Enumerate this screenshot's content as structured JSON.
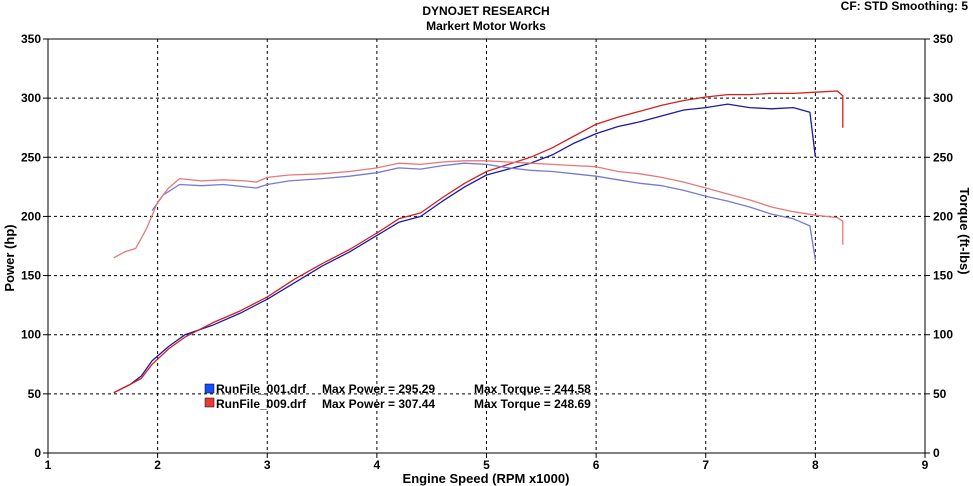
{
  "header": {
    "title": "DYNOJET RESEARCH",
    "subtitle": "Markert Motor Works",
    "cf_label": "CF: STD  Smoothing: 5"
  },
  "colors": {
    "series_blue": "#1a1aa8",
    "series_red": "#d42020",
    "series_blue_torque": "#7878d8",
    "series_red_torque": "#e87878",
    "legend_blue_box": "#1a4cff",
    "legend_red_box": "#e83a3a"
  },
  "legend": [
    {
      "file": "RunFile_001.drf",
      "power_label": "Max Power = 295.29",
      "torque_label": "Max Torque = 244.58",
      "color": "blue"
    },
    {
      "file": "RunFile_009.drf",
      "power_label": "Max Power = 307.44",
      "torque_label": "Max Torque = 248.69",
      "color": "red"
    }
  ],
  "chart_data": {
    "type": "line",
    "title": "DYNOJET RESEARCH",
    "subtitle": "Markert Motor Works",
    "xlabel": "Engine Speed (RPM x1000)",
    "ylabel_left": "Power (hp)",
    "ylabel_right": "Torque (ft-lbs)",
    "xlim": [
      1,
      9
    ],
    "ylim": [
      0,
      350
    ],
    "xticks": [
      1,
      2,
      3,
      4,
      5,
      6,
      7,
      8,
      9
    ],
    "yticks": [
      0,
      50,
      100,
      150,
      200,
      250,
      300,
      350
    ],
    "grid": true,
    "legend_placement": "bottom-left",
    "series": [
      {
        "name": "RunFile_001.drf",
        "quantity": "Power",
        "color_key": "series_blue",
        "points": [
          [
            1.6,
            51
          ],
          [
            1.75,
            58
          ],
          [
            1.85,
            65
          ],
          [
            1.95,
            78
          ],
          [
            2.1,
            90
          ],
          [
            2.25,
            100
          ],
          [
            2.5,
            108
          ],
          [
            2.75,
            118
          ],
          [
            3.0,
            130
          ],
          [
            3.25,
            144
          ],
          [
            3.5,
            158
          ],
          [
            3.75,
            170
          ],
          [
            4.0,
            184
          ],
          [
            4.2,
            195
          ],
          [
            4.4,
            200
          ],
          [
            4.6,
            213
          ],
          [
            4.8,
            225
          ],
          [
            5.0,
            235
          ],
          [
            5.2,
            240
          ],
          [
            5.4,
            245
          ],
          [
            5.6,
            252
          ],
          [
            5.8,
            262
          ],
          [
            6.0,
            270
          ],
          [
            6.2,
            276
          ],
          [
            6.4,
            280
          ],
          [
            6.6,
            285
          ],
          [
            6.8,
            290
          ],
          [
            7.0,
            292
          ],
          [
            7.2,
            295
          ],
          [
            7.4,
            292
          ],
          [
            7.6,
            291
          ],
          [
            7.8,
            292
          ],
          [
            7.95,
            288
          ],
          [
            8.0,
            250
          ]
        ]
      },
      {
        "name": "RunFile_009.drf",
        "quantity": "Power",
        "color_key": "series_red",
        "points": [
          [
            1.6,
            51
          ],
          [
            1.75,
            58
          ],
          [
            1.85,
            63
          ],
          [
            1.95,
            75
          ],
          [
            2.1,
            88
          ],
          [
            2.25,
            98
          ],
          [
            2.5,
            110
          ],
          [
            2.75,
            120
          ],
          [
            3.0,
            132
          ],
          [
            3.25,
            147
          ],
          [
            3.5,
            160
          ],
          [
            3.75,
            172
          ],
          [
            4.0,
            186
          ],
          [
            4.2,
            198
          ],
          [
            4.4,
            203
          ],
          [
            4.6,
            216
          ],
          [
            4.8,
            228
          ],
          [
            5.0,
            238
          ],
          [
            5.2,
            244
          ],
          [
            5.4,
            250
          ],
          [
            5.6,
            258
          ],
          [
            5.8,
            268
          ],
          [
            6.0,
            278
          ],
          [
            6.2,
            284
          ],
          [
            6.4,
            289
          ],
          [
            6.6,
            294
          ],
          [
            6.8,
            298
          ],
          [
            7.0,
            301
          ],
          [
            7.2,
            303
          ],
          [
            7.4,
            303
          ],
          [
            7.6,
            304
          ],
          [
            7.8,
            304
          ],
          [
            8.0,
            305
          ],
          [
            8.2,
            306
          ],
          [
            8.25,
            302
          ],
          [
            8.25,
            275
          ]
        ]
      },
      {
        "name": "RunFile_001.drf",
        "quantity": "Torque",
        "color_key": "series_blue_torque",
        "points": [
          [
            1.95,
            205
          ],
          [
            2.05,
            218
          ],
          [
            2.2,
            227
          ],
          [
            2.4,
            226
          ],
          [
            2.6,
            227
          ],
          [
            2.8,
            225
          ],
          [
            2.9,
            224
          ],
          [
            3.0,
            227
          ],
          [
            3.2,
            230
          ],
          [
            3.5,
            232
          ],
          [
            3.75,
            234
          ],
          [
            4.0,
            237
          ],
          [
            4.2,
            241
          ],
          [
            4.4,
            240
          ],
          [
            4.6,
            243
          ],
          [
            4.8,
            245
          ],
          [
            5.0,
            244
          ],
          [
            5.2,
            241
          ],
          [
            5.4,
            239
          ],
          [
            5.6,
            238
          ],
          [
            5.8,
            236
          ],
          [
            6.0,
            234
          ],
          [
            6.2,
            231
          ],
          [
            6.4,
            228
          ],
          [
            6.6,
            226
          ],
          [
            6.8,
            222
          ],
          [
            7.0,
            217
          ],
          [
            7.2,
            213
          ],
          [
            7.4,
            208
          ],
          [
            7.6,
            202
          ],
          [
            7.8,
            198
          ],
          [
            7.95,
            192
          ],
          [
            8.0,
            163
          ]
        ]
      },
      {
        "name": "RunFile_009.drf",
        "quantity": "Torque",
        "color_key": "series_red_torque",
        "points": [
          [
            1.6,
            165
          ],
          [
            1.7,
            170
          ],
          [
            1.8,
            173
          ],
          [
            1.9,
            190
          ],
          [
            2.0,
            212
          ],
          [
            2.1,
            224
          ],
          [
            2.2,
            232
          ],
          [
            2.4,
            230
          ],
          [
            2.6,
            231
          ],
          [
            2.8,
            230
          ],
          [
            2.9,
            229
          ],
          [
            3.0,
            233
          ],
          [
            3.2,
            235
          ],
          [
            3.5,
            236
          ],
          [
            3.75,
            238
          ],
          [
            4.0,
            241
          ],
          [
            4.2,
            245
          ],
          [
            4.4,
            244
          ],
          [
            4.6,
            246
          ],
          [
            4.8,
            247
          ],
          [
            5.0,
            247
          ],
          [
            5.2,
            246
          ],
          [
            5.4,
            245
          ],
          [
            5.6,
            244
          ],
          [
            5.8,
            243
          ],
          [
            6.0,
            242
          ],
          [
            6.2,
            238
          ],
          [
            6.4,
            236
          ],
          [
            6.6,
            233
          ],
          [
            6.8,
            229
          ],
          [
            7.0,
            224
          ],
          [
            7.2,
            219
          ],
          [
            7.4,
            214
          ],
          [
            7.6,
            208
          ],
          [
            7.8,
            204
          ],
          [
            8.0,
            201
          ],
          [
            8.2,
            199
          ],
          [
            8.25,
            196
          ],
          [
            8.25,
            176
          ]
        ]
      }
    ]
  }
}
